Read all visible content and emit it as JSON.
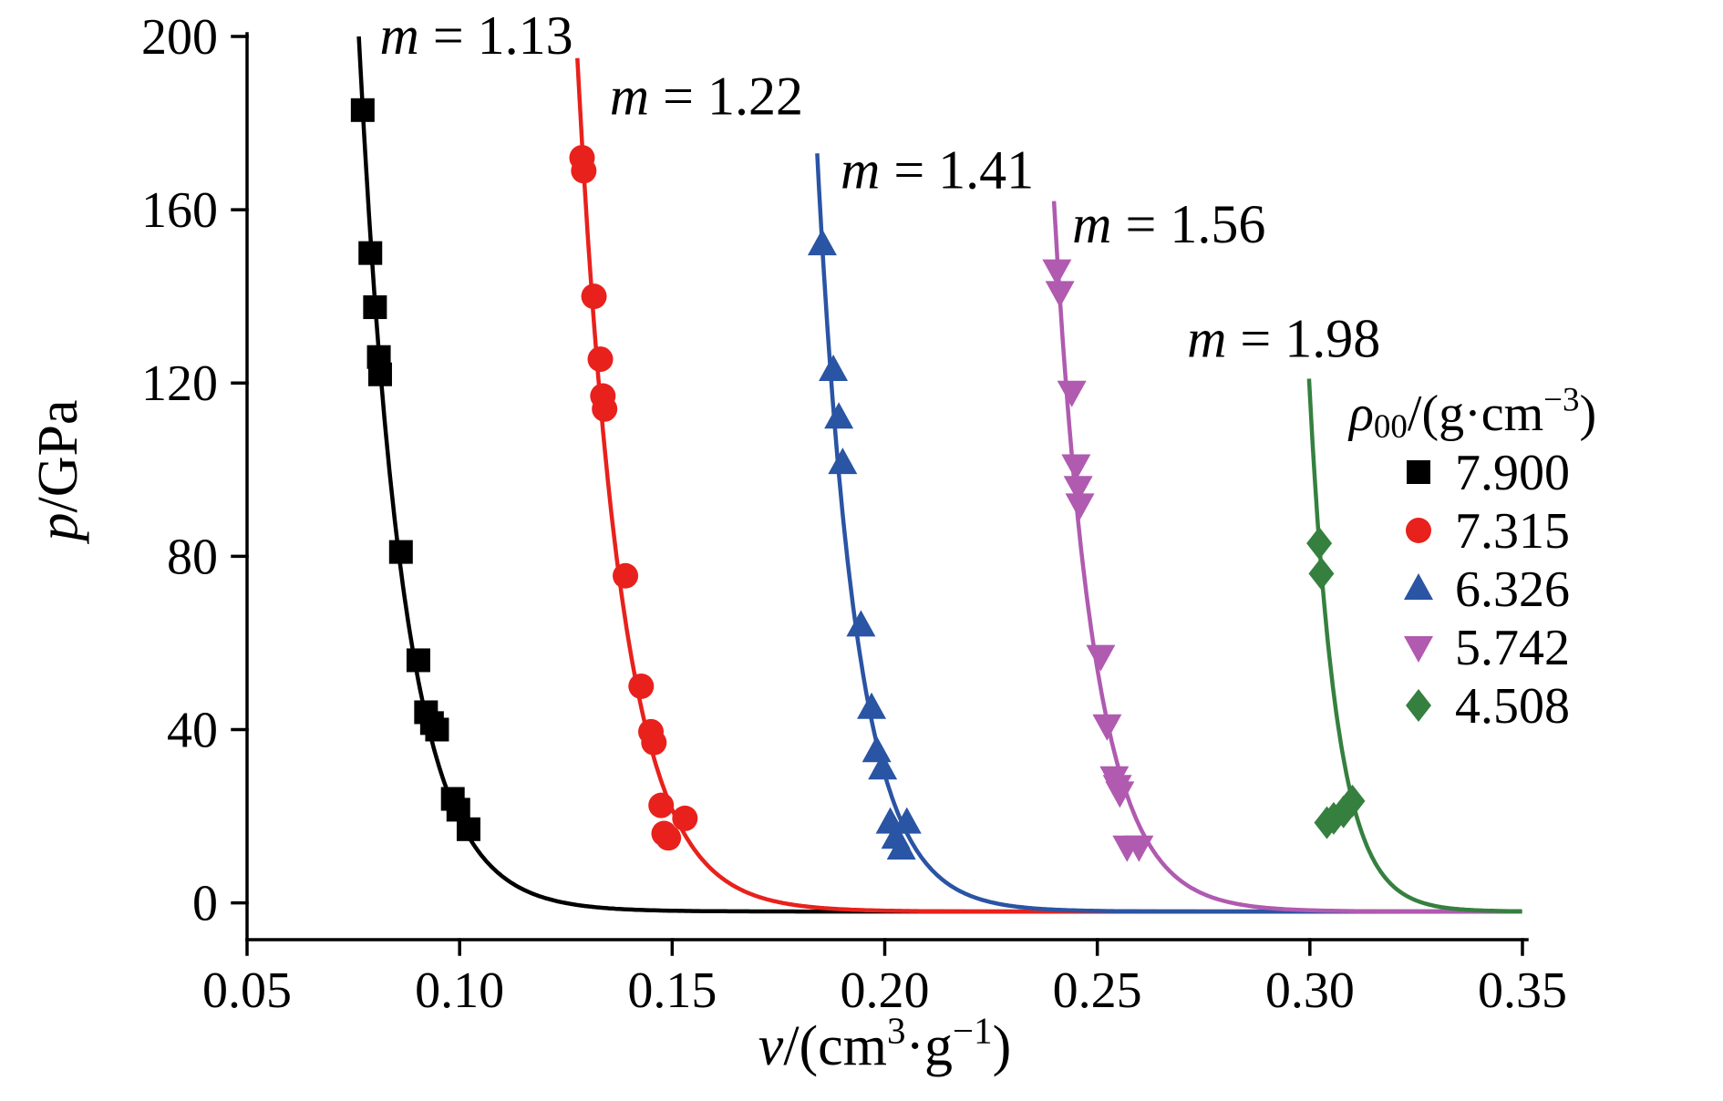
{
  "figure": {
    "background": "#ffffff",
    "axis_color": "#000000",
    "text_color": "#000000"
  },
  "chart_data": {
    "type": "scatter",
    "title": "",
    "xlabel_parts": [
      {
        "t": "v",
        "italic": true
      },
      {
        "t": "/(cm"
      },
      {
        "t": "3",
        "sup": true
      },
      {
        "t": "·g"
      },
      {
        "t": "−1",
        "sup": true
      },
      {
        "t": ")"
      }
    ],
    "ylabel_parts": [
      {
        "t": "p",
        "italic": true
      },
      {
        "t": "/GPa"
      }
    ],
    "xlim": [
      0.05,
      0.35
    ],
    "ylim": [
      -8.5,
      200
    ],
    "x_ticks": [
      0.05,
      0.1,
      0.15,
      0.2,
      0.25,
      0.3,
      0.35
    ],
    "x_tick_labels": [
      "0.05",
      "0.10",
      "0.15",
      "0.20",
      "0.25",
      "0.30",
      "0.35"
    ],
    "y_ticks": [
      0,
      40,
      80,
      120,
      160,
      200
    ],
    "y_tick_labels": [
      "0",
      "40",
      "80",
      "120",
      "160",
      "200"
    ],
    "grid": false,
    "legend": {
      "position": "right",
      "title_parts": [
        {
          "t": "ρ",
          "italic": true
        },
        {
          "t": "00",
          "sub": true
        },
        {
          "t": "/(g·cm"
        },
        {
          "t": "−3",
          "sup": true
        },
        {
          "t": ")"
        }
      ]
    },
    "series": [
      {
        "name": "7.900",
        "marker": "square",
        "color": "#000000",
        "annotation": {
          "parts": [
            {
              "t": "m",
              "italic": true
            },
            {
              "t": " = 1.13"
            }
          ],
          "v": 0.0812,
          "p": 196
        },
        "fit": {
          "v_top": 0.0763,
          "p_top": 200,
          "lambda": 0.0105,
          "asymptote": -2
        },
        "points": [
          [
            0.0772,
            183
          ],
          [
            0.079,
            150
          ],
          [
            0.0801,
            137.5
          ],
          [
            0.081,
            126
          ],
          [
            0.0813,
            122
          ],
          [
            0.0862,
            81
          ],
          [
            0.0903,
            56
          ],
          [
            0.0921,
            44
          ],
          [
            0.0935,
            41.5
          ],
          [
            0.0947,
            40
          ],
          [
            0.0984,
            24
          ],
          [
            0.0997,
            21.5
          ],
          [
            0.1021,
            17
          ]
        ]
      },
      {
        "name": "7.315",
        "marker": "circle",
        "color": "#e8211c",
        "annotation": {
          "parts": [
            {
              "t": "m",
              "italic": true
            },
            {
              "t": " = 1.22"
            }
          ],
          "v": 0.1353,
          "p": 182
        },
        "fit": {
          "v_top": 0.1277,
          "p_top": 195,
          "lambda": 0.0105,
          "asymptote": -2
        },
        "points": [
          [
            0.1288,
            172
          ],
          [
            0.1292,
            169
          ],
          [
            0.1316,
            140
          ],
          [
            0.1331,
            125.5
          ],
          [
            0.1337,
            117
          ],
          [
            0.1341,
            114
          ],
          [
            0.139,
            75.5
          ],
          [
            0.1427,
            50
          ],
          [
            0.145,
            39.5
          ],
          [
            0.1457,
            37
          ],
          [
            0.1474,
            22.5
          ],
          [
            0.1481,
            16
          ],
          [
            0.1491,
            15
          ],
          [
            0.153,
            19.5
          ]
        ]
      },
      {
        "name": "6.326",
        "marker": "triangle-up",
        "color": "#2a54a4",
        "annotation": {
          "parts": [
            {
              "t": "m",
              "italic": true
            },
            {
              "t": " = 1.41"
            }
          ],
          "v": 0.1896,
          "p": 165
        },
        "fit": {
          "v_top": 0.1841,
          "p_top": 173,
          "lambda": 0.0093,
          "asymptote": -2
        },
        "points": [
          [
            0.1853,
            152
          ],
          [
            0.1879,
            123
          ],
          [
            0.1892,
            112
          ],
          [
            0.1901,
            101.5
          ],
          [
            0.1944,
            64
          ],
          [
            0.1969,
            45
          ],
          [
            0.1981,
            35
          ],
          [
            0.1995,
            31
          ],
          [
            0.2013,
            18.5
          ],
          [
            0.2026,
            15
          ],
          [
            0.2039,
            12.5
          ],
          [
            0.2052,
            18.5
          ]
        ]
      },
      {
        "name": "5.742",
        "marker": "triangle-down",
        "color": "#b05ab0",
        "annotation": {
          "parts": [
            {
              "t": "m",
              "italic": true
            },
            {
              "t": " = 1.56"
            }
          ],
          "v": 0.2441,
          "p": 152.5
        },
        "fit": {
          "v_top": 0.2398,
          "p_top": 162,
          "lambda": 0.0095,
          "asymptote": -2
        },
        "points": [
          [
            0.2405,
            146
          ],
          [
            0.2412,
            141
          ],
          [
            0.244,
            118
          ],
          [
            0.245,
            101
          ],
          [
            0.2455,
            96
          ],
          [
            0.2459,
            92
          ],
          [
            0.2508,
            57
          ],
          [
            0.2523,
            41
          ],
          [
            0.254,
            29
          ],
          [
            0.2547,
            27
          ],
          [
            0.2553,
            25.5
          ],
          [
            0.257,
            13
          ],
          [
            0.2598,
            13
          ]
        ]
      },
      {
        "name": "4.508",
        "marker": "diamond",
        "color": "#35803f",
        "annotation": {
          "parts": [
            {
              "t": "m",
              "italic": true
            },
            {
              "t": " = 1.98"
            }
          ],
          "v": 0.2711,
          "p": 126
        },
        "fit": {
          "v_top": 0.2998,
          "p_top": 121,
          "lambda": 0.0065,
          "asymptote": -2
        },
        "points": [
          [
            0.3022,
            83
          ],
          [
            0.3027,
            76
          ],
          [
            0.304,
            18.5
          ],
          [
            0.3056,
            19.5
          ],
          [
            0.3079,
            21
          ],
          [
            0.31,
            23.5
          ]
        ]
      }
    ]
  }
}
